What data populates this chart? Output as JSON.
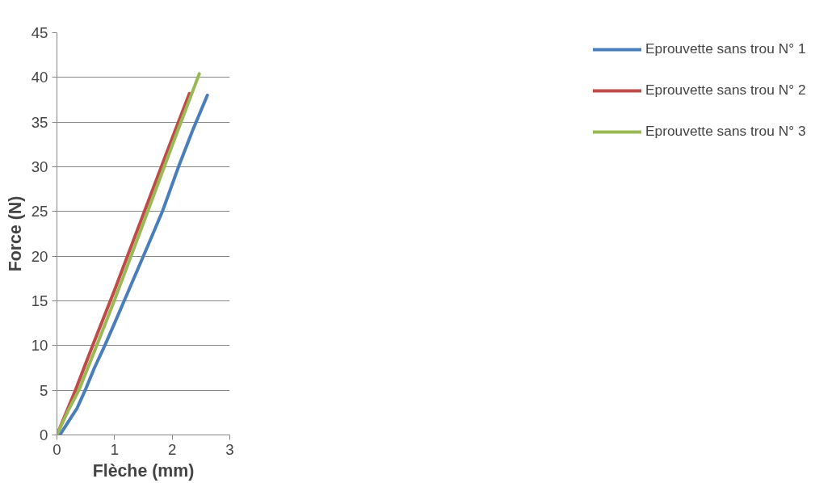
{
  "chart_data": {
    "type": "line",
    "xlabel": "Flèche (mm)",
    "ylabel": "Force (N)",
    "xlim": [
      0,
      3
    ],
    "ylim": [
      0,
      45
    ],
    "xticks": [
      0,
      1,
      2,
      3
    ],
    "yticks": [
      0,
      5,
      10,
      15,
      20,
      25,
      30,
      35,
      40,
      45
    ],
    "grid": "y",
    "legend": "right",
    "line_style": "solid",
    "marker": "none",
    "series": [
      {
        "name": "Eprouvette sans trou N° 1",
        "color": "#4a7ebb",
        "x": [
          0.05,
          0.2,
          0.35,
          0.49,
          0.65,
          0.83,
          1.0,
          1.2,
          1.4,
          1.6,
          1.83,
          2.11,
          2.35,
          2.61
        ],
        "values": [
          0,
          1.5,
          3,
          5,
          7.5,
          10,
          12.5,
          15.5,
          18.5,
          21.5,
          25,
          30,
          34,
          38
        ]
      },
      {
        "name": "Eprouvette sans trou N° 2",
        "color": "#be4b48",
        "x": [
          0,
          0.32,
          0.62,
          1.0,
          1.5,
          2.0,
          2.3
        ],
        "values": [
          0,
          5,
          10,
          16.2,
          24.7,
          33.2,
          38.2
        ]
      },
      {
        "name": "Eprouvette sans trou N° 3",
        "color": "#98b954",
        "x": [
          0,
          0.2,
          0.38,
          0.66,
          1.0,
          1.5,
          2.0,
          2.47
        ],
        "values": [
          0,
          2.8,
          5,
          9.5,
          15.1,
          23.7,
          32.4,
          40.4
        ]
      }
    ]
  }
}
